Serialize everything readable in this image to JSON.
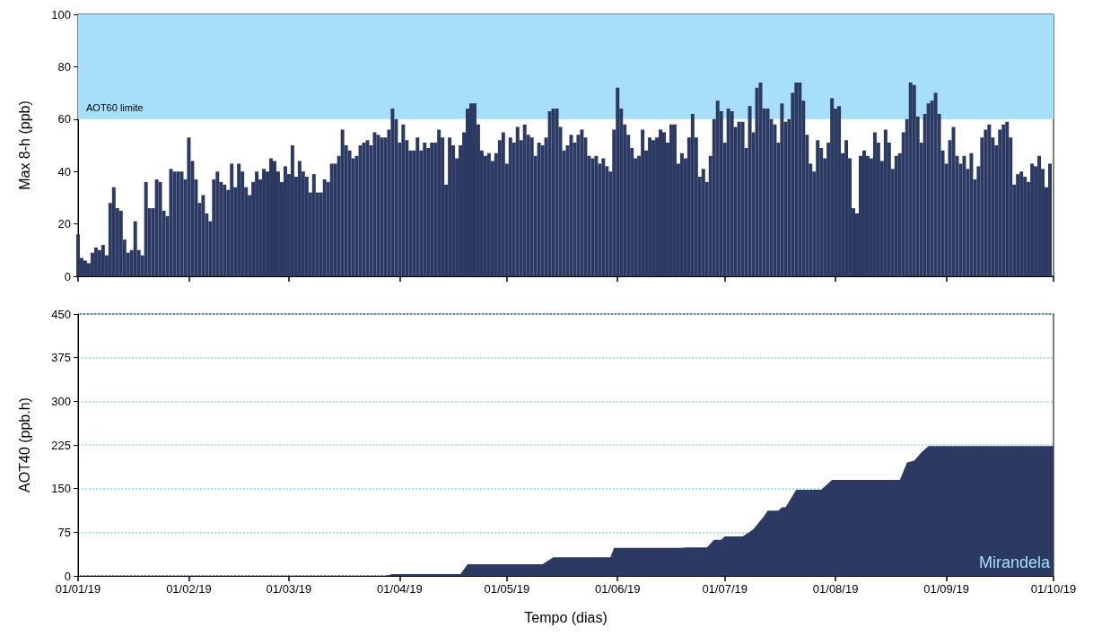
{
  "chart_data": [
    {
      "type": "bar",
      "ylabel": "Max 8-h (ppb)",
      "x": [
        "2019-01-01",
        "2019-01-02",
        "2019-01-03",
        "2019-01-04",
        "2019-01-05",
        "2019-01-06",
        "2019-01-07",
        "2019-01-08",
        "2019-01-09",
        "2019-01-10",
        "2019-01-11",
        "2019-01-12",
        "2019-01-13",
        "2019-01-14",
        "2019-01-15",
        "2019-01-16",
        "2019-01-17",
        "2019-01-18",
        "2019-01-19",
        "2019-01-20",
        "2019-01-21",
        "2019-01-22",
        "2019-01-23",
        "2019-01-24",
        "2019-01-25",
        "2019-01-26",
        "2019-01-27",
        "2019-01-28",
        "2019-01-29",
        "2019-01-30",
        "2019-01-31",
        "2019-02-01",
        "2019-02-02",
        "2019-02-03",
        "2019-02-04",
        "2019-02-05",
        "2019-02-06",
        "2019-02-07",
        "2019-02-08",
        "2019-02-09",
        "2019-02-10",
        "2019-02-11",
        "2019-02-12",
        "2019-02-13",
        "2019-02-14",
        "2019-02-15",
        "2019-02-16",
        "2019-02-17",
        "2019-02-18",
        "2019-02-19",
        "2019-02-20",
        "2019-02-21",
        "2019-02-22",
        "2019-02-23",
        "2019-02-24",
        "2019-02-25",
        "2019-02-26",
        "2019-02-27",
        "2019-02-28",
        "2019-03-01",
        "2019-03-02",
        "2019-03-03",
        "2019-03-04",
        "2019-03-05",
        "2019-03-06",
        "2019-03-07",
        "2019-03-08",
        "2019-03-09",
        "2019-03-10",
        "2019-03-11",
        "2019-03-12",
        "2019-03-13",
        "2019-03-14",
        "2019-03-15",
        "2019-03-16",
        "2019-03-17",
        "2019-03-18",
        "2019-03-19",
        "2019-03-20",
        "2019-03-21",
        "2019-03-22",
        "2019-03-23",
        "2019-03-24",
        "2019-03-25",
        "2019-03-26",
        "2019-03-27",
        "2019-03-28",
        "2019-03-29",
        "2019-03-30",
        "2019-03-31",
        "2019-04-01",
        "2019-04-02",
        "2019-04-03",
        "2019-04-04",
        "2019-04-05",
        "2019-04-06",
        "2019-04-07",
        "2019-04-08",
        "2019-04-09",
        "2019-04-10",
        "2019-04-11",
        "2019-04-12",
        "2019-04-13",
        "2019-04-14",
        "2019-04-15",
        "2019-04-16",
        "2019-04-17",
        "2019-04-18",
        "2019-04-19",
        "2019-04-20",
        "2019-04-21",
        "2019-04-22",
        "2019-04-23",
        "2019-04-24",
        "2019-04-25",
        "2019-04-26",
        "2019-04-27",
        "2019-04-28",
        "2019-04-29",
        "2019-04-30",
        "2019-05-01",
        "2019-05-02",
        "2019-05-03",
        "2019-05-04",
        "2019-05-05",
        "2019-05-06",
        "2019-05-07",
        "2019-05-08",
        "2019-05-09",
        "2019-05-10",
        "2019-05-11",
        "2019-05-12",
        "2019-05-13",
        "2019-05-14",
        "2019-05-15",
        "2019-05-16",
        "2019-05-17",
        "2019-05-18",
        "2019-05-19",
        "2019-05-20",
        "2019-05-21",
        "2019-05-22",
        "2019-05-23",
        "2019-05-24",
        "2019-05-25",
        "2019-05-26",
        "2019-05-27",
        "2019-05-28",
        "2019-05-29",
        "2019-05-30",
        "2019-05-31",
        "2019-06-01",
        "2019-06-02",
        "2019-06-03",
        "2019-06-04",
        "2019-06-05",
        "2019-06-06",
        "2019-06-07",
        "2019-06-08",
        "2019-06-09",
        "2019-06-10",
        "2019-06-11",
        "2019-06-12",
        "2019-06-13",
        "2019-06-14",
        "2019-06-15",
        "2019-06-16",
        "2019-06-17",
        "2019-06-18",
        "2019-06-19",
        "2019-06-20",
        "2019-06-21",
        "2019-06-22",
        "2019-06-23",
        "2019-06-24",
        "2019-06-25",
        "2019-06-26",
        "2019-06-27",
        "2019-06-28",
        "2019-06-29",
        "2019-06-30",
        "2019-07-01",
        "2019-07-02",
        "2019-07-03",
        "2019-07-04",
        "2019-07-05",
        "2019-07-06",
        "2019-07-07",
        "2019-07-08",
        "2019-07-09",
        "2019-07-10",
        "2019-07-11",
        "2019-07-12",
        "2019-07-13",
        "2019-07-14",
        "2019-07-15",
        "2019-07-16",
        "2019-07-17",
        "2019-07-18",
        "2019-07-19",
        "2019-07-20",
        "2019-07-21",
        "2019-07-22",
        "2019-07-23",
        "2019-07-24",
        "2019-07-25",
        "2019-07-26",
        "2019-07-27",
        "2019-07-28",
        "2019-07-29",
        "2019-07-30",
        "2019-07-31",
        "2019-08-01",
        "2019-08-02",
        "2019-08-03",
        "2019-08-04",
        "2019-08-05",
        "2019-08-06",
        "2019-08-07",
        "2019-08-08",
        "2019-08-09",
        "2019-08-10",
        "2019-08-11",
        "2019-08-12",
        "2019-08-13",
        "2019-08-14",
        "2019-08-15",
        "2019-08-16",
        "2019-08-17",
        "2019-08-18",
        "2019-08-19",
        "2019-08-20",
        "2019-08-21",
        "2019-08-22",
        "2019-08-23",
        "2019-08-24",
        "2019-08-25",
        "2019-08-26",
        "2019-08-27",
        "2019-08-28",
        "2019-08-29",
        "2019-08-30",
        "2019-08-31",
        "2019-09-01",
        "2019-09-02",
        "2019-09-03",
        "2019-09-04",
        "2019-09-05",
        "2019-09-06",
        "2019-09-07",
        "2019-09-08",
        "2019-09-09",
        "2019-09-10",
        "2019-09-11",
        "2019-09-12",
        "2019-09-13",
        "2019-09-14",
        "2019-09-15",
        "2019-09-16",
        "2019-09-17",
        "2019-09-18",
        "2019-09-19",
        "2019-09-20",
        "2019-09-21",
        "2019-09-22",
        "2019-09-23",
        "2019-09-24",
        "2019-09-25",
        "2019-09-26",
        "2019-09-27",
        "2019-09-28",
        "2019-09-29",
        "2019-09-30"
      ],
      "series": [
        {
          "color": "#2c3a63",
          "values": [
            16,
            7,
            6,
            5,
            9,
            11,
            10,
            12,
            8,
            28,
            34,
            26,
            25,
            14,
            9,
            10,
            21,
            10,
            8,
            36,
            26,
            26,
            37,
            36,
            25,
            23,
            41,
            40,
            40,
            40,
            37,
            53,
            44,
            37,
            28,
            31,
            24,
            21,
            37,
            40,
            36,
            35,
            33,
            43,
            34,
            43,
            40,
            34,
            31,
            36,
            40,
            37,
            41,
            40,
            45,
            44,
            40,
            36,
            42,
            39,
            50,
            38,
            44,
            40,
            38,
            32,
            39,
            32,
            32,
            37,
            36,
            43,
            43,
            46,
            56,
            50,
            48,
            45,
            46,
            50,
            51,
            52,
            50,
            55,
            54,
            53,
            53,
            56,
            64,
            60,
            51,
            58,
            52,
            48,
            48,
            53,
            48,
            51,
            49,
            51,
            51,
            56,
            53,
            35,
            53,
            50,
            45,
            50,
            55,
            64,
            66,
            66,
            58,
            48,
            46,
            47,
            44,
            47,
            52,
            55,
            43,
            53,
            51,
            57,
            52,
            58,
            54,
            53,
            46,
            51,
            50,
            53,
            63,
            64,
            64,
            57,
            48,
            50,
            54,
            51,
            54,
            56,
            53,
            46,
            45,
            46,
            43,
            45,
            42,
            40,
            56,
            72,
            64,
            58,
            54,
            49,
            45,
            46,
            56,
            48,
            53,
            52,
            53,
            56,
            55,
            51,
            58,
            58,
            43,
            47,
            45,
            53,
            62,
            53,
            38,
            41,
            36,
            46,
            60,
            67,
            63,
            51,
            64,
            63,
            57,
            59,
            59,
            49,
            65,
            55,
            72,
            74,
            64,
            64,
            60,
            58,
            51,
            66,
            59,
            60,
            70,
            74,
            74,
            67,
            54,
            43,
            40,
            52,
            49,
            45,
            51,
            68,
            64,
            65,
            47,
            52,
            45,
            26,
            24,
            46,
            48,
            46,
            45,
            55,
            51,
            44,
            56,
            51,
            41,
            46,
            47,
            55,
            60,
            74,
            73,
            61,
            51,
            62,
            66,
            67,
            70,
            62,
            48,
            43,
            52,
            57,
            46,
            43,
            46,
            41,
            47,
            37,
            42,
            53,
            56,
            58,
            53,
            50,
            56,
            58,
            59,
            53,
            35,
            39,
            40,
            38,
            36,
            43,
            42,
            46,
            41,
            34,
            43
          ]
        }
      ],
      "xlim": [
        "2019-01-01",
        "2019-10-01"
      ],
      "xticks": [
        {
          "value": "2019-01-01",
          "label": null
        },
        {
          "value": "2019-02-01",
          "label": null
        },
        {
          "value": "2019-03-01",
          "label": null
        },
        {
          "value": "2019-04-01",
          "label": null
        },
        {
          "value": "2019-05-01",
          "label": null
        },
        {
          "value": "2019-06-01",
          "label": null
        },
        {
          "value": "2019-07-01",
          "label": null
        },
        {
          "value": "2019-08-01",
          "label": null
        },
        {
          "value": "2019-09-01",
          "label": null
        },
        {
          "value": "2019-10-01",
          "label": null
        }
      ],
      "ylim": [
        0,
        100
      ],
      "yticks": [
        0,
        20,
        40,
        60,
        80,
        100
      ],
      "bands": [
        {
          "axis": "y",
          "from": 60,
          "to": 100,
          "label": "AOT60 limite",
          "color": "#a6dff7"
        }
      ],
      "tick_labels": "y"
    },
    {
      "type": "area",
      "xlabel": "Tempo (dias)",
      "ylabel": "AOT40 (ppb.h)",
      "series": [
        {
          "color": "#2c3a63",
          "x": [
            "2019-01-01",
            "2019-03-28",
            "2019-03-30",
            "2019-04-18",
            "2019-04-20",
            "2019-05-11",
            "2019-05-14",
            "2019-05-30",
            "2019-05-31",
            "2019-06-19",
            "2019-06-20",
            "2019-06-26",
            "2019-06-28",
            "2019-06-30",
            "2019-07-01",
            "2019-07-06",
            "2019-07-08",
            "2019-07-09",
            "2019-07-12",
            "2019-07-13",
            "2019-07-16",
            "2019-07-17",
            "2019-07-18",
            "2019-07-21",
            "2019-07-28",
            "2019-07-31",
            "2019-08-19",
            "2019-08-21",
            "2019-08-23",
            "2019-08-25",
            "2019-08-27",
            "2019-10-01"
          ],
          "values": [
            0,
            0,
            3,
            3,
            20,
            20,
            32,
            32,
            48,
            48,
            49,
            49,
            62,
            62,
            68,
            68,
            76,
            80,
            103,
            112,
            112,
            118,
            118,
            148,
            148,
            165,
            165,
            195,
            198,
            212,
            223,
            223
          ]
        }
      ],
      "xlim": [
        "2019-01-01",
        "2019-10-01"
      ],
      "xticks": [
        {
          "value": "2019-01-01",
          "label": "01/01/19"
        },
        {
          "value": "2019-02-01",
          "label": "01/02/19"
        },
        {
          "value": "2019-03-01",
          "label": "01/03/19"
        },
        {
          "value": "2019-04-01",
          "label": "01/04/19"
        },
        {
          "value": "2019-05-01",
          "label": "01/05/19"
        },
        {
          "value": "2019-06-01",
          "label": "01/06/19"
        },
        {
          "value": "2019-07-01",
          "label": "01/07/19"
        },
        {
          "value": "2019-08-01",
          "label": "01/08/19"
        },
        {
          "value": "2019-09-01",
          "label": "01/09/19"
        },
        {
          "value": "2019-10-01",
          "label": "01/10/19"
        }
      ],
      "ylim": [
        0,
        450
      ],
      "yticks": [
        0,
        75,
        150,
        225,
        300,
        375,
        450
      ],
      "grid": "y",
      "annotations": [
        "Mirandela"
      ]
    }
  ]
}
